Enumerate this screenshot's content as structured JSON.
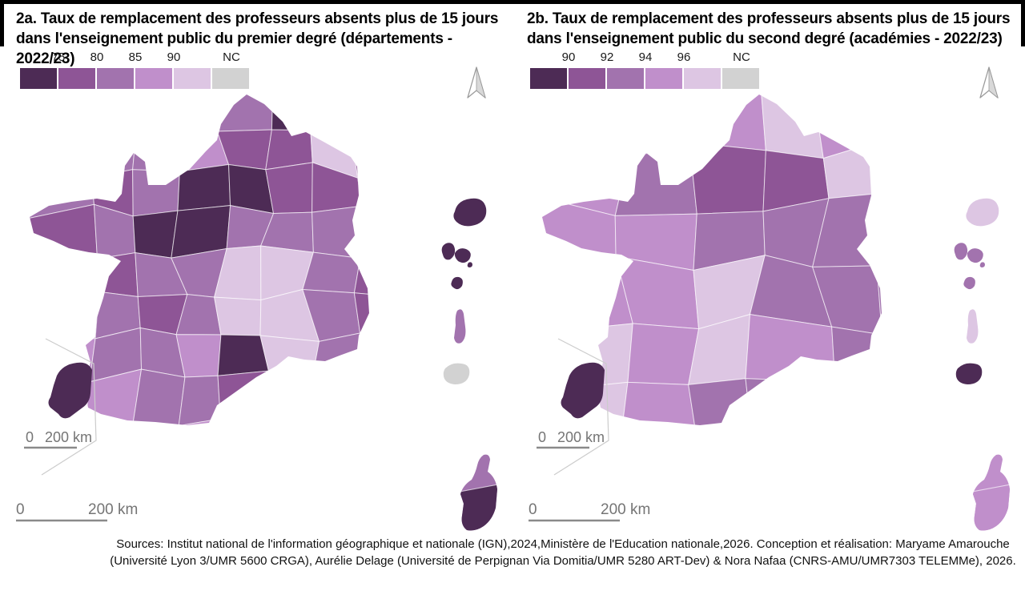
{
  "palette": [
    "#4d2b55",
    "#8e5596",
    "#a273ae",
    "#c08fcb",
    "#ddc6e3",
    "#d2d2d2"
  ],
  "cell_border_color": "rgba(255,255,255,0.65)",
  "scale_text_color": "#757575",
  "inset_frame_color": "#cccccc",
  "maps": [
    {
      "title_line1": "2a. Taux de remplacement des professeurs absents plus de 15 jours",
      "title_line2": "dans l'enseignement public du premier degré (départements - 2022/23)",
      "legend_labels": [
        "75",
        "80",
        "85",
        "90",
        "NC"
      ],
      "inset_scale_zero": "0",
      "inset_scale_label": "200 km",
      "bottom_scale_zero": "0",
      "bottom_scale_label": "200 km",
      "grid": {
        "cols": 9,
        "rows": 10,
        "seed": 3,
        "matrix": [
          [
            2,
            2,
            2,
            1,
            2,
            0,
            2,
            2,
            2
          ],
          [
            2,
            2,
            2,
            3,
            1,
            1,
            4,
            1,
            2
          ],
          [
            2,
            1,
            2,
            0,
            0,
            1,
            1,
            0,
            1
          ],
          [
            1,
            2,
            0,
            0,
            2,
            2,
            2,
            4,
            0
          ],
          [
            2,
            1,
            2,
            2,
            4,
            4,
            2,
            1,
            0
          ],
          [
            2,
            2,
            1,
            2,
            4,
            4,
            2,
            1,
            1
          ],
          [
            3,
            2,
            2,
            3,
            0,
            4,
            2,
            1,
            2
          ],
          [
            2,
            3,
            2,
            2,
            1,
            2,
            3,
            4,
            1
          ],
          [
            3,
            2,
            3,
            3,
            2,
            0,
            0,
            0,
            1
          ],
          [
            2,
            3,
            2,
            0,
            1,
            0,
            0,
            0,
            2
          ]
        ]
      },
      "corsica": {
        "north": 2,
        "south": 0
      },
      "guyane_inset": 0,
      "islands": [
        0,
        0,
        0,
        2,
        5
      ]
    },
    {
      "title_line1": "2b. Taux de remplacement des professeurs absents plus de 15 jours",
      "title_line2": "dans l'enseignement public du second degré (académies - 2022/23)",
      "legend_labels": [
        "90",
        "92",
        "94",
        "96",
        "NC"
      ],
      "inset_scale_zero": "0",
      "inset_scale_label": "200 km",
      "bottom_scale_zero": "0",
      "bottom_scale_label": "200 km",
      "grid": {
        "cols": 6,
        "rows": 7,
        "seed": 8,
        "matrix": [
          [
            3,
            3,
            3,
            4,
            3,
            3
          ],
          [
            3,
            2,
            1,
            1,
            4,
            2
          ],
          [
            3,
            3,
            2,
            2,
            2,
            2
          ],
          [
            3,
            3,
            4,
            2,
            2,
            2
          ],
          [
            4,
            3,
            4,
            3,
            2,
            2
          ],
          [
            4,
            3,
            2,
            2,
            3,
            3
          ],
          [
            3,
            3,
            3,
            2,
            3,
            4
          ]
        ]
      },
      "corsica": {
        "north": 3,
        "south": 3
      },
      "guyane_inset": 0,
      "islands": [
        4,
        2,
        2,
        4,
        0
      ]
    }
  ],
  "footer": {
    "line1": "Sources: Institut national de l'information géographique et nationale (IGN),2024,Ministère de l'Education nationale,2026.  Conception et réalisation: Maryame Amarouche",
    "line2": "(Université Lyon 3/UMR 5600 CRGA), Aurélie Delage (Université de Perpignan Via Domitia/UMR 5280 ART-Dev) & Nora Nafaa (CNRS-AMU/UMR7303 TELEMMe), 2026."
  }
}
